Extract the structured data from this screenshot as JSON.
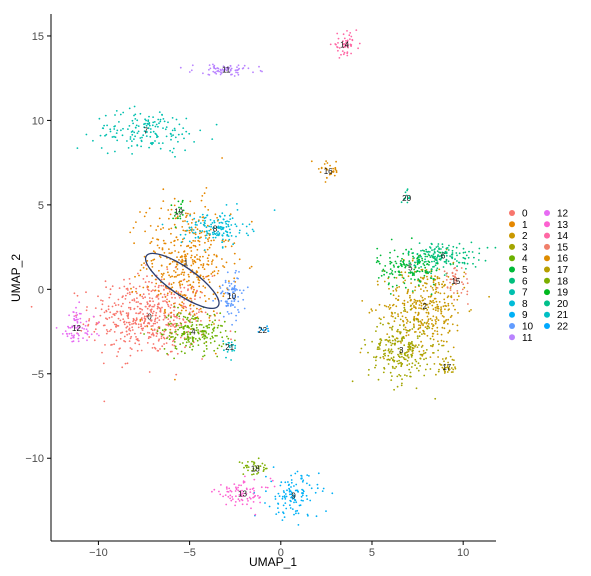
{
  "chart_data": {
    "type": "scatter",
    "xlabel": "UMAP_1",
    "ylabel": "UMAP_2",
    "xlim": [
      -12.6,
      11.8
    ],
    "ylim": [
      -14.9,
      16.3
    ],
    "xticks": [
      -10,
      -5,
      0,
      5,
      10
    ],
    "yticks": [
      -10,
      -5,
      0,
      5,
      10,
      15
    ],
    "grid": false,
    "legend_position": "right",
    "legend": [
      "0",
      "1",
      "2",
      "3",
      "4",
      "5",
      "6",
      "7",
      "8",
      "9",
      "10",
      "11",
      "12",
      "13",
      "14",
      "15",
      "16",
      "17",
      "18",
      "19",
      "20",
      "21",
      "22"
    ],
    "colors": [
      "#F8766D",
      "#E58700",
      "#C99800",
      "#A3A500",
      "#6BB100",
      "#00BA38",
      "#00BF7D",
      "#00C0AF",
      "#00BCD8",
      "#00B0F6",
      "#619CFF",
      "#B983FF",
      "#E76BF3",
      "#FD61D1",
      "#FF67A4",
      "#F07F6A",
      "#DE8C00",
      "#B79F00",
      "#7CAE00",
      "#00B81F",
      "#00C08B",
      "#00BFC4",
      "#00A9FF"
    ],
    "clusters": [
      {
        "id": "0",
        "label": "0",
        "center": [
          -7.2,
          -1.6
        ],
        "spread": [
          1.6,
          1.2
        ],
        "n": 520
      },
      {
        "id": "1",
        "label": "1",
        "center": [
          -5.2,
          1.6
        ],
        "spread": [
          1.2,
          1.8
        ],
        "n": 420
      },
      {
        "id": "2",
        "label": "2",
        "center": [
          7.9,
          -1.0
        ],
        "spread": [
          1.1,
          1.3
        ],
        "n": 380
      },
      {
        "id": "3",
        "label": "3",
        "center": [
          6.6,
          -3.6
        ],
        "spread": [
          0.9,
          1.0
        ],
        "n": 250
      },
      {
        "id": "4",
        "label": "4",
        "center": [
          -4.8,
          -2.5
        ],
        "spread": [
          0.9,
          0.6
        ],
        "n": 200
      },
      {
        "id": "5",
        "label": "5",
        "center": [
          7.1,
          1.3
        ],
        "spread": [
          0.9,
          0.6
        ],
        "n": 160
      },
      {
        "id": "6",
        "label": "6",
        "center": [
          8.9,
          2.0
        ],
        "spread": [
          1.0,
          0.4
        ],
        "n": 150
      },
      {
        "id": "7",
        "label": "7",
        "center": [
          -7.4,
          9.4
        ],
        "spread": [
          1.4,
          0.6
        ],
        "n": 160
      },
      {
        "id": "8",
        "label": "8",
        "center": [
          -3.6,
          3.6
        ],
        "spread": [
          0.9,
          0.5
        ],
        "n": 140
      },
      {
        "id": "9",
        "label": "9",
        "center": [
          0.7,
          -12.2
        ],
        "spread": [
          0.7,
          0.7
        ],
        "n": 120
      },
      {
        "id": "10",
        "label": "10",
        "center": [
          -2.7,
          -0.4
        ],
        "spread": [
          0.4,
          0.7
        ],
        "n": 80
      },
      {
        "id": "11",
        "label": "11",
        "center": [
          -3.0,
          13.0
        ],
        "spread": [
          0.9,
          0.15
        ],
        "n": 70
      },
      {
        "id": "12",
        "label": "12",
        "center": [
          -11.2,
          -2.3
        ],
        "spread": [
          0.5,
          0.6
        ],
        "n": 70
      },
      {
        "id": "13",
        "label": "13",
        "center": [
          -2.1,
          -12.1
        ],
        "spread": [
          0.8,
          0.4
        ],
        "n": 80
      },
      {
        "id": "14",
        "label": "14",
        "center": [
          3.5,
          14.5
        ],
        "spread": [
          0.35,
          0.3
        ],
        "n": 50
      },
      {
        "id": "15",
        "label": "15",
        "center": [
          9.6,
          0.5
        ],
        "spread": [
          0.4,
          0.4
        ],
        "n": 45
      },
      {
        "id": "16",
        "label": "16",
        "center": [
          2.6,
          7.0
        ],
        "spread": [
          0.3,
          0.35
        ],
        "n": 30
      },
      {
        "id": "17",
        "label": "17",
        "center": [
          9.1,
          -4.6
        ],
        "spread": [
          0.3,
          0.25
        ],
        "n": 35
      },
      {
        "id": "18",
        "label": "18",
        "center": [
          -1.4,
          -10.6
        ],
        "spread": [
          0.5,
          0.2
        ],
        "n": 35
      },
      {
        "id": "19",
        "label": "19",
        "center": [
          -5.6,
          4.6
        ],
        "spread": [
          0.15,
          0.4
        ],
        "n": 20
      },
      {
        "id": "20",
        "label": "20",
        "center": [
          6.9,
          5.4
        ],
        "spread": [
          0.12,
          0.25
        ],
        "n": 12
      },
      {
        "id": "21",
        "label": "21",
        "center": [
          -2.8,
          -3.4
        ],
        "spread": [
          0.2,
          0.3
        ],
        "n": 18
      },
      {
        "id": "22",
        "label": "22",
        "center": [
          -1.0,
          -2.4
        ],
        "spread": [
          0.25,
          0.12
        ],
        "n": 10
      }
    ],
    "annotations": [
      {
        "type": "ellipse",
        "center": [
          -5.4,
          0.5
        ],
        "rx": 2.4,
        "ry": 0.8,
        "angle_deg": -35,
        "color": "#2c3e70"
      }
    ]
  }
}
